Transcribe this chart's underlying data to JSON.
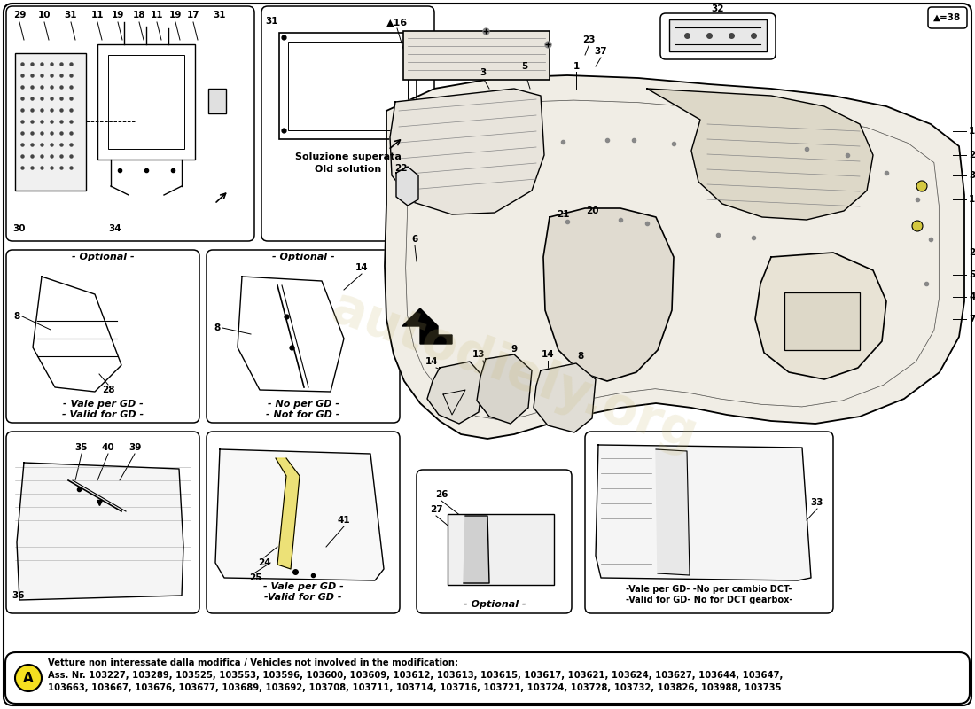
{
  "bg_color": "#ffffff",
  "note_box": {
    "text_line1": "Vetture non interessate dalla modifica / Vehicles not involved in the modification:",
    "text_line2": "Ass. Nr. 103227, 103289, 103525, 103553, 103596, 103600, 103609, 103612, 103613, 103615, 103617, 103621, 103624, 103627, 103644, 103647,",
    "text_line3": "103663, 103667, 103676, 103677, 103689, 103692, 103708, 103711, 103714, 103716, 103721, 103724, 103728, 103732, 103826, 103988, 103735",
    "label": "A",
    "label_bg": "#f5e020"
  },
  "watermark": "autodiely.org"
}
